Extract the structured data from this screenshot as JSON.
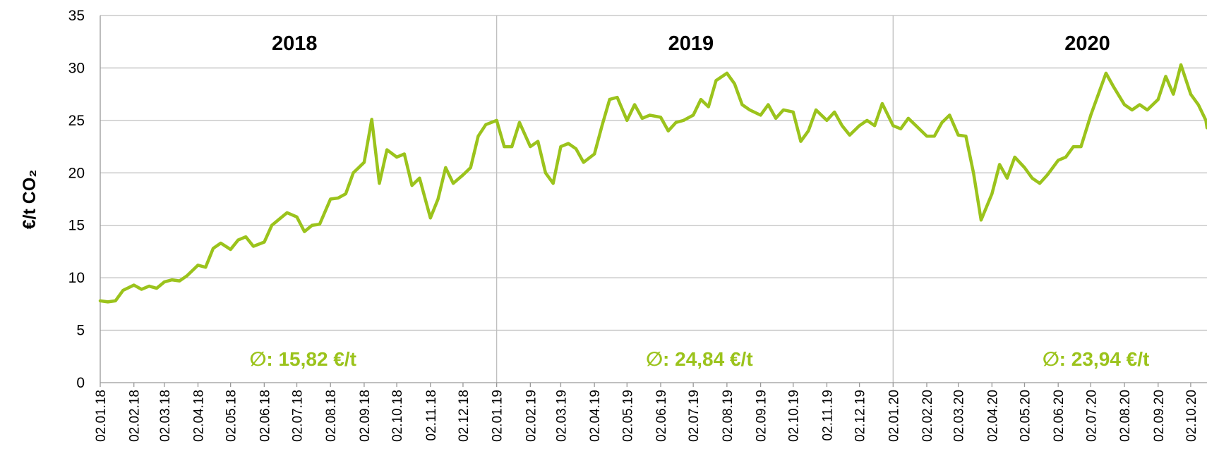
{
  "chart_data": {
    "type": "line",
    "y_label": "€/t CO₂",
    "color": "#9bc31c",
    "xlim": [
      "02.01.18",
      "17.10.20"
    ],
    "ylim": [
      0,
      35
    ],
    "yticks": [
      0,
      5,
      10,
      15,
      20,
      25,
      30,
      35
    ],
    "grid": true,
    "xticks": [
      "02.01.18",
      "02.02.18",
      "02.03.18",
      "02.04.18",
      "02.05.18",
      "02.06.18",
      "02.07.18",
      "02.08.18",
      "02.09.18",
      "02.10.18",
      "02.11.18",
      "02.12.18",
      "02.01.19",
      "02.02.19",
      "02.03.19",
      "02.04.19",
      "02.05.19",
      "02.06.19",
      "02.07.19",
      "02.08.19",
      "02.09.19",
      "02.10.19",
      "02.11.19",
      "02.12.19",
      "02.01.20",
      "02.02.20",
      "02.03.20",
      "02.04.20",
      "02.05.20",
      "02.06.20",
      "02.07.20",
      "02.08.20",
      "02.09.20",
      "02.10.20"
    ],
    "year_dividers": [
      "02.01.19",
      "02.01.20"
    ],
    "year_labels": [
      "2018",
      "2019",
      "2020"
    ],
    "year_starts": [
      "02.01.18",
      "02.01.19",
      "02.01.20"
    ],
    "averages": [
      "∅: 15,82 €/t",
      "∅: 24,84 €/t",
      "∅: 23,94 €/t"
    ],
    "x": [
      "02.01.18",
      "09.01.18",
      "16.01.18",
      "23.01.18",
      "02.02.18",
      "09.02.18",
      "16.02.18",
      "23.02.18",
      "02.03.18",
      "09.03.18",
      "16.03.18",
      "23.03.18",
      "02.04.18",
      "09.04.18",
      "16.04.18",
      "23.04.18",
      "02.05.18",
      "09.05.18",
      "16.05.18",
      "23.05.18",
      "02.06.18",
      "09.06.18",
      "16.06.18",
      "23.06.18",
      "02.07.18",
      "09.07.18",
      "16.07.18",
      "23.07.18",
      "02.08.18",
      "09.08.18",
      "16.08.18",
      "23.08.18",
      "02.09.18",
      "09.09.18",
      "16.09.18",
      "23.09.18",
      "02.10.18",
      "09.10.18",
      "16.10.18",
      "23.10.18",
      "02.11.18",
      "09.11.18",
      "16.11.18",
      "23.11.18",
      "02.12.18",
      "09.12.18",
      "16.12.18",
      "23.12.18",
      "02.01.19",
      "09.01.19",
      "16.01.19",
      "23.01.19",
      "02.02.19",
      "09.02.19",
      "16.02.19",
      "23.02.19",
      "02.03.19",
      "09.03.19",
      "16.03.19",
      "23.03.19",
      "02.04.19",
      "09.04.19",
      "16.04.19",
      "23.04.19",
      "02.05.19",
      "09.05.19",
      "16.05.19",
      "23.05.19",
      "02.06.19",
      "09.06.19",
      "16.06.19",
      "23.06.19",
      "02.07.19",
      "09.07.19",
      "16.07.19",
      "23.07.19",
      "02.08.19",
      "09.08.19",
      "16.08.19",
      "23.08.19",
      "02.09.19",
      "09.09.19",
      "16.09.19",
      "23.09.19",
      "02.10.19",
      "09.10.19",
      "16.10.19",
      "23.10.19",
      "02.11.19",
      "09.11.19",
      "16.11.19",
      "23.11.19",
      "02.12.19",
      "09.12.19",
      "16.12.19",
      "23.12.19",
      "02.01.20",
      "09.01.20",
      "16.01.20",
      "23.01.20",
      "02.02.20",
      "09.02.20",
      "16.02.20",
      "23.02.20",
      "02.03.20",
      "09.03.20",
      "16.03.20",
      "23.03.20",
      "02.04.20",
      "09.04.20",
      "16.04.20",
      "23.04.20",
      "02.05.20",
      "09.05.20",
      "16.05.20",
      "23.05.20",
      "02.06.20",
      "09.06.20",
      "16.06.20",
      "23.06.20",
      "02.07.20",
      "09.07.20",
      "16.07.20",
      "23.07.20",
      "02.08.20",
      "09.08.20",
      "16.08.20",
      "23.08.20",
      "02.09.20",
      "09.09.20",
      "16.09.20",
      "23.09.20",
      "02.10.20",
      "09.10.20",
      "16.10.20",
      "17.10.20"
    ],
    "values": [
      7.8,
      7.7,
      7.8,
      8.8,
      9.3,
      8.9,
      9.2,
      9.0,
      9.6,
      9.8,
      9.7,
      10.2,
      11.2,
      11.0,
      12.8,
      13.3,
      12.7,
      13.6,
      13.9,
      13.0,
      13.4,
      15.0,
      15.6,
      16.2,
      15.8,
      14.4,
      15.0,
      15.1,
      17.5,
      17.6,
      18.0,
      20.0,
      21.0,
      25.1,
      19.0,
      22.2,
      21.5,
      21.8,
      18.8,
      19.5,
      15.7,
      17.5,
      20.5,
      19.0,
      19.8,
      20.5,
      23.5,
      24.6,
      25.0,
      22.5,
      22.5,
      24.8,
      22.5,
      23.0,
      20.0,
      19.0,
      22.5,
      22.8,
      22.3,
      21.0,
      21.8,
      24.5,
      27.0,
      27.2,
      25.0,
      26.5,
      25.2,
      25.5,
      25.3,
      24.0,
      24.8,
      25.0,
      25.5,
      27.0,
      26.3,
      28.8,
      29.5,
      28.5,
      26.5,
      26.0,
      25.5,
      26.5,
      25.2,
      26.0,
      25.8,
      23.0,
      24.0,
      26.0,
      25.0,
      25.8,
      24.5,
      23.6,
      24.5,
      25.0,
      24.5,
      26.6,
      24.5,
      24.2,
      25.2,
      24.5,
      23.5,
      23.5,
      24.8,
      25.5,
      23.6,
      23.5,
      20.0,
      15.5,
      18.0,
      20.8,
      19.5,
      21.5,
      20.5,
      19.5,
      19.0,
      19.8,
      21.2,
      21.5,
      22.5,
      22.5,
      25.5,
      27.5,
      29.5,
      28.2,
      26.5,
      26.0,
      26.5,
      26.0,
      27.0,
      29.2,
      27.5,
      30.3,
      27.5,
      26.5,
      25.0,
      24.3
    ]
  }
}
